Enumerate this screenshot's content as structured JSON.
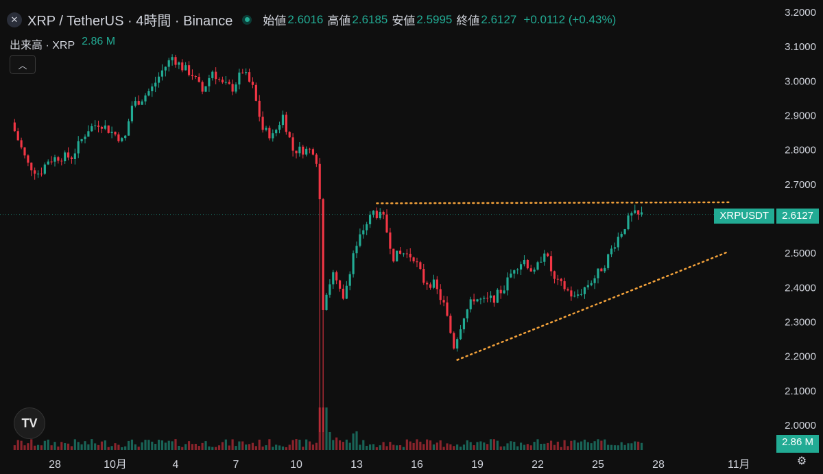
{
  "header": {
    "symbol_title": "XRP / TetherUS · 4時間 · Binance",
    "open_label": "始値",
    "open_value": "2.6016",
    "high_label": "高値",
    "high_value": "2.6185",
    "low_label": "安値",
    "low_value": "2.5995",
    "close_label": "終値",
    "close_value": "2.6127",
    "change_value": "+0.0112 (+0.43%)"
  },
  "volume": {
    "label": "出来高 · XRP",
    "value": "2.86 M"
  },
  "price_tag": {
    "symbol": "XRPUSDT",
    "value": "2.6127"
  },
  "volume_tag": {
    "value": "2.86 M"
  },
  "icons": {
    "logo": "xrp-logo-icon",
    "collapse": "chevron-up-icon",
    "brand": "tradingview-logo-icon",
    "settings": "gear-icon"
  },
  "tv_logo_text": "TV",
  "colors": {
    "up": "#22ab94",
    "down": "#f23645",
    "trendline": "#f5a33b",
    "background": "#0f0f0f"
  },
  "chart_data": {
    "type": "candlestick",
    "timeframe": "4時間",
    "y_axis_ticks": [
      "3.2000",
      "3.1000",
      "3.0000",
      "2.9000",
      "2.8000",
      "2.7000",
      "2.6000",
      "2.5000",
      "2.4000",
      "2.3000",
      "2.2000",
      "2.1000",
      "2.0000"
    ],
    "ylim": [
      1.96,
      3.22
    ],
    "x_axis_ticks": [
      {
        "label": "28",
        "day": -3
      },
      {
        "label": "10月",
        "day": 0
      },
      {
        "label": "4",
        "day": 3
      },
      {
        "label": "7",
        "day": 6
      },
      {
        "label": "10",
        "day": 9
      },
      {
        "label": "13",
        "day": 12
      },
      {
        "label": "16",
        "day": 15
      },
      {
        "label": "19",
        "day": 18
      },
      {
        "label": "22",
        "day": 21
      },
      {
        "label": "25",
        "day": 24
      },
      {
        "label": "28",
        "day": 27
      },
      {
        "label": "11月",
        "day": 31
      }
    ],
    "xlim_days": [
      -5,
      34.9
    ],
    "anchors": [
      {
        "d": -5.0,
        "p": 2.88
      },
      {
        "d": -4.6,
        "p": 2.82
      },
      {
        "d": -4.2,
        "p": 2.76
      },
      {
        "d": -3.6,
        "p": 2.73
      },
      {
        "d": -3.2,
        "p": 2.77
      },
      {
        "d": -2.6,
        "p": 2.78
      },
      {
        "d": -2.0,
        "p": 2.78
      },
      {
        "d": -1.6,
        "p": 2.82
      },
      {
        "d": -1.2,
        "p": 2.86
      },
      {
        "d": -0.6,
        "p": 2.88
      },
      {
        "d": -0.2,
        "p": 2.86
      },
      {
        "d": 0.3,
        "p": 2.84
      },
      {
        "d": 0.6,
        "p": 2.82
      },
      {
        "d": 1.0,
        "p": 2.93
      },
      {
        "d": 1.5,
        "p": 2.95
      },
      {
        "d": 2.0,
        "p": 2.98
      },
      {
        "d": 2.5,
        "p": 3.03
      },
      {
        "d": 3.0,
        "p": 3.07
      },
      {
        "d": 3.5,
        "p": 3.04
      },
      {
        "d": 4.0,
        "p": 3.02
      },
      {
        "d": 4.5,
        "p": 2.97
      },
      {
        "d": 5.0,
        "p": 3.03
      },
      {
        "d": 5.5,
        "p": 2.99
      },
      {
        "d": 6.0,
        "p": 2.98
      },
      {
        "d": 6.5,
        "p": 3.03
      },
      {
        "d": 7.0,
        "p": 2.98
      },
      {
        "d": 7.5,
        "p": 2.86
      },
      {
        "d": 8.0,
        "p": 2.84
      },
      {
        "d": 8.5,
        "p": 2.9
      },
      {
        "d": 9.0,
        "p": 2.8
      },
      {
        "d": 9.5,
        "p": 2.8
      },
      {
        "d": 10.0,
        "p": 2.8
      },
      {
        "d": 10.3,
        "p": 2.75
      },
      {
        "d": 10.45,
        "p": 2.33
      },
      {
        "d": 10.6,
        "p": 2.38
      },
      {
        "d": 11.0,
        "p": 2.44
      },
      {
        "d": 11.5,
        "p": 2.36
      },
      {
        "d": 12.0,
        "p": 2.5
      },
      {
        "d": 12.5,
        "p": 2.57
      },
      {
        "d": 13.0,
        "p": 2.62
      },
      {
        "d": 13.5,
        "p": 2.6
      },
      {
        "d": 14.0,
        "p": 2.49
      },
      {
        "d": 14.5,
        "p": 2.5
      },
      {
        "d": 15.0,
        "p": 2.49
      },
      {
        "d": 15.5,
        "p": 2.42
      },
      {
        "d": 16.0,
        "p": 2.41
      },
      {
        "d": 16.5,
        "p": 2.35
      },
      {
        "d": 17.0,
        "p": 2.23
      },
      {
        "d": 17.5,
        "p": 2.32
      },
      {
        "d": 18.0,
        "p": 2.37
      },
      {
        "d": 18.5,
        "p": 2.36
      },
      {
        "d": 19.0,
        "p": 2.37
      },
      {
        "d": 19.5,
        "p": 2.4
      },
      {
        "d": 20.0,
        "p": 2.46
      },
      {
        "d": 20.5,
        "p": 2.48
      },
      {
        "d": 21.0,
        "p": 2.44
      },
      {
        "d": 21.5,
        "p": 2.51
      },
      {
        "d": 22.0,
        "p": 2.42
      },
      {
        "d": 22.5,
        "p": 2.4
      },
      {
        "d": 23.0,
        "p": 2.37
      },
      {
        "d": 23.5,
        "p": 2.4
      },
      {
        "d": 24.0,
        "p": 2.43
      },
      {
        "d": 24.5,
        "p": 2.47
      },
      {
        "d": 25.0,
        "p": 2.53
      },
      {
        "d": 25.5,
        "p": 2.58
      },
      {
        "d": 25.8,
        "p": 2.61
      },
      {
        "d": 26.2,
        "p": 2.6127
      }
    ],
    "candles_per_day": 6,
    "volume_spike": {
      "day": 10.45,
      "value_rel": 1.0
    },
    "trendlines": [
      {
        "type": "resistance",
        "from": {
          "d": 13.0,
          "p": 2.645
        },
        "to": {
          "d": 30.5,
          "p": 2.648
        }
      },
      {
        "type": "support",
        "from": {
          "d": 17.0,
          "p": 2.19
        },
        "to": {
          "d": 30.5,
          "p": 2.505
        }
      }
    ],
    "last_price": 2.6127,
    "volume_last": "2.86 M"
  }
}
